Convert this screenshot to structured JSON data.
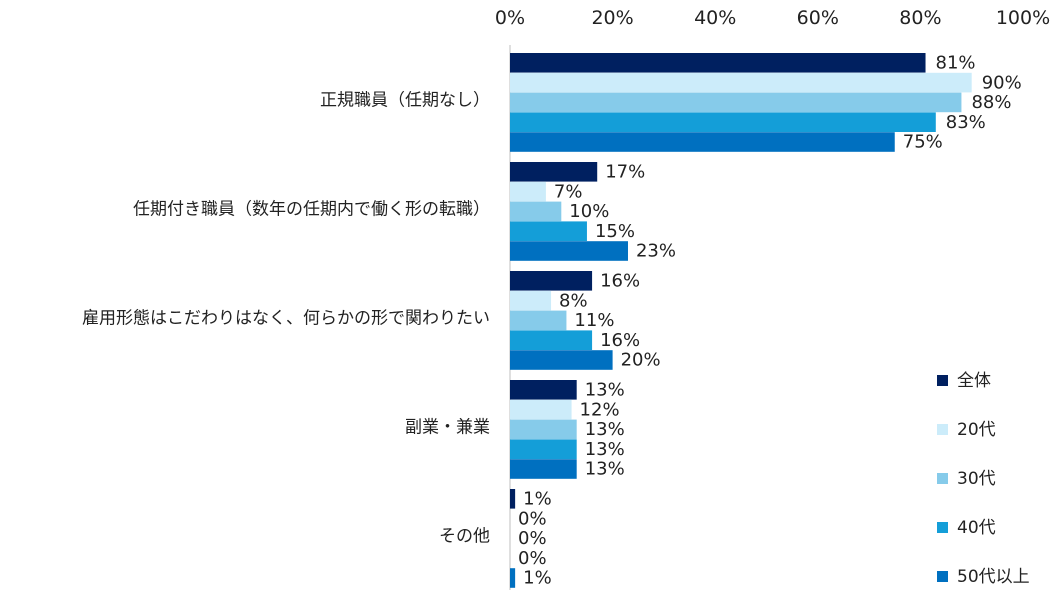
{
  "chart_data": {
    "type": "bar",
    "orientation": "horizontal",
    "title": "",
    "xlabel": "",
    "ylabel": "",
    "xlim": [
      0,
      100
    ],
    "x_ticks": [
      "0%",
      "20%",
      "40%",
      "60%",
      "80%",
      "100%"
    ],
    "x_ticks_position": "top",
    "grid": false,
    "legend_position": "bottom-right",
    "categories": [
      "正規職員（任期なし）",
      "任期付き職員（数年の任期内で働く形の転職）",
      "雇用形態はこだわりはなく、何らかの形で関わりたい",
      "副業・兼業",
      "その他"
    ],
    "series": [
      {
        "name": "全体",
        "color": "#002060",
        "values": [
          81,
          17,
          16,
          13,
          1
        ],
        "labels": [
          "81%",
          "17%",
          "16%",
          "13%",
          "1%"
        ]
      },
      {
        "name": "20代",
        "color": "#CCECFA",
        "values": [
          90,
          7,
          8,
          12,
          0
        ],
        "labels": [
          "90%",
          "7%",
          "8%",
          "12%",
          "0%"
        ]
      },
      {
        "name": "30代",
        "color": "#86CBEA",
        "values": [
          88,
          10,
          11,
          13,
          0
        ],
        "labels": [
          "88%",
          "10%",
          "11%",
          "13%",
          "0%"
        ]
      },
      {
        "name": "40代",
        "color": "#149ED8",
        "values": [
          83,
          15,
          16,
          13,
          0
        ],
        "labels": [
          "83%",
          "15%",
          "16%",
          "13%",
          "0%"
        ]
      },
      {
        "name": "50代以上",
        "color": "#0070C0",
        "values": [
          75,
          23,
          20,
          13,
          1
        ],
        "labels": [
          "75%",
          "23%",
          "20%",
          "13%",
          "1%"
        ]
      }
    ]
  }
}
